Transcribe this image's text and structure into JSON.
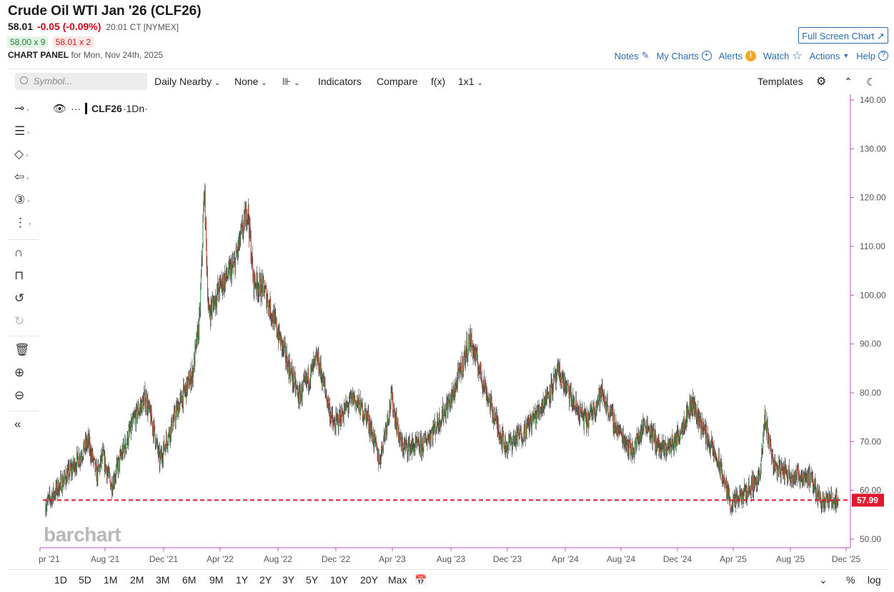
{
  "header": {
    "title": "Crude Oil WTI Jan '26 (CLF26)",
    "last": "58.01",
    "change": "-0.05 (-0.09%)",
    "time": "20:01 CT [NYMEX]",
    "bid": "58.00 x 9",
    "ask": "58.01 x 2",
    "panel_label": "CHART PANEL",
    "panel_date": "for Mon, Nov 24th, 2025"
  },
  "top_links": {
    "full_screen": "Full Screen Chart ↗",
    "notes": "Notes",
    "my_charts": "My Charts",
    "alerts": "Alerts",
    "watch": "Watch",
    "actions": "Actions",
    "help": "Help"
  },
  "toolbar": {
    "search_placeholder": "Symbol...",
    "period": "Daily Nearby",
    "overlay": "None",
    "indicators": "Indicators",
    "compare": "Compare",
    "fx": "f(x)",
    "layout": "1x1",
    "templates": "Templates"
  },
  "legend": {
    "symbol": "CLF26",
    "interval": "·1Dn·"
  },
  "watermark": "barchart",
  "colors": {
    "up": "#3a9a4a",
    "down": "#c0392b",
    "price_line": "#e0192f",
    "axis": "#c04fc0"
  },
  "icons": [
    "crosshair-icon",
    "draw-lines-icon",
    "shapes-icon",
    "arrow-icon",
    "count-icon",
    "measure-icon",
    "magnet-icon",
    "unlock-icon",
    "undo-icon",
    "redo-icon",
    "trash-icon",
    "zoom-in-icon",
    "zoom-out-icon",
    "collapse-icon"
  ],
  "bottom": {
    "ranges": [
      "1D",
      "5D",
      "1M",
      "2M",
      "3M",
      "6M",
      "9M",
      "1Y",
      "2Y",
      "3Y",
      "5Y",
      "10Y",
      "20Y",
      "Max"
    ],
    "percent": "%",
    "log": "log"
  },
  "chart_data": {
    "type": "line",
    "ylim": [
      50,
      140
    ],
    "y_ticks": [
      "140.00",
      "130.00",
      "120.00",
      "110.00",
      "100.00",
      "90.00",
      "80.00",
      "70.00",
      "60.00",
      "50.00"
    ],
    "x_ticks": [
      "pr '21",
      "Aug '21",
      "Dec '21",
      "Apr '22",
      "Aug '22",
      "Dec '22",
      "Apr '23",
      "Aug '23",
      "Dec '23",
      "Apr '24",
      "Aug '24",
      "Dec '24",
      "Apr '25",
      "Aug '25",
      "Dec '25"
    ],
    "last_price_label": "57.99",
    "last_price": 57.99,
    "series": [
      {
        "x": [
          "2021-04-01",
          "2021-05-01",
          "2021-06-01",
          "2021-07-01",
          "2021-07-20",
          "2021-08-01",
          "2021-08-20",
          "2021-09-10",
          "2021-10-10",
          "2021-11-01",
          "2021-11-20",
          "2021-12-01",
          "2021-12-15",
          "2022-01-10",
          "2022-02-10",
          "2022-02-25",
          "2022-03-07",
          "2022-03-16",
          "2022-04-11",
          "2022-05-10",
          "2022-06-08",
          "2022-06-20",
          "2022-07-14",
          "2022-08-16",
          "2022-09-26",
          "2022-11-05",
          "2022-12-09",
          "2023-01-20",
          "2023-02-20",
          "2023-03-17",
          "2023-04-12",
          "2023-05-03",
          "2023-06-15",
          "2023-07-15",
          "2023-08-20",
          "2023-09-27",
          "2023-10-20",
          "2023-11-15",
          "2023-12-12",
          "2024-01-20",
          "2024-02-20",
          "2024-04-05",
          "2024-05-10",
          "2024-06-04",
          "2024-07-05",
          "2024-08-05",
          "2024-09-10",
          "2024-10-07",
          "2024-11-10",
          "2024-12-10",
          "2025-01-15",
          "2025-02-20",
          "2025-03-15",
          "2025-04-09",
          "2025-05-05",
          "2025-06-10",
          "2025-06-20",
          "2025-07-10",
          "2025-08-20",
          "2025-09-20",
          "2025-10-20",
          "2025-11-24"
        ],
        "y": [
          57,
          61,
          65,
          70,
          63,
          67,
          61,
          67,
          75,
          79,
          72,
          66,
          70,
          77,
          84,
          95,
          122,
          96,
          102,
          106,
          118,
          103,
          101,
          91,
          79,
          87,
          73,
          79,
          75,
          66,
          79,
          69,
          69,
          73,
          79,
          91,
          84,
          76,
          69,
          72,
          76,
          84,
          77,
          74,
          80,
          73,
          68,
          74,
          68,
          70,
          78,
          70,
          65,
          57,
          59,
          63,
          75,
          65,
          63,
          63,
          58,
          58
        ]
      }
    ]
  }
}
